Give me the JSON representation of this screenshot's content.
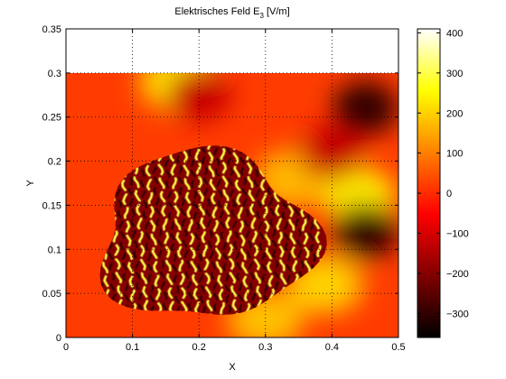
{
  "chart_data": {
    "type": "heatmap",
    "title": "Elektrisches Feld E",
    "title_subscript": "3",
    "title_unit": "[V/m]",
    "xlabel": "X",
    "ylabel": "Y",
    "xlim": [
      0,
      0.5
    ],
    "ylim": [
      0,
      0.35
    ],
    "data_extent": {
      "x": [
        0,
        0.5
      ],
      "y": [
        0,
        0.3
      ]
    },
    "x_ticks": [
      "0",
      "0.1",
      "0.2",
      "0.3",
      "0.4",
      "0.5"
    ],
    "x_tick_values": [
      0,
      0.1,
      0.2,
      0.3,
      0.4,
      0.5
    ],
    "y_ticks": [
      "0",
      "0.05",
      "0.1",
      "0.15",
      "0.2",
      "0.25",
      "0.3",
      "0.35"
    ],
    "y_tick_values": [
      0,
      0.05,
      0.1,
      0.15,
      0.2,
      0.25,
      0.3,
      0.35
    ],
    "grid": true,
    "grid_style": "dotted",
    "colormap": "hot",
    "colorbar": {
      "range": [
        -360,
        410
      ],
      "ticks": [
        "400",
        "300",
        "200",
        "100",
        "0",
        "−100",
        "−200",
        "−300"
      ],
      "tick_values": [
        400,
        300,
        200,
        100,
        0,
        -100,
        -200,
        -300
      ],
      "colors": [
        "#000000",
        "#800000",
        "#ff0000",
        "#ff8000",
        "#ffff00",
        "#ffffff"
      ]
    },
    "field_summary": {
      "background_level": 20,
      "interference_region": {
        "x": [
          0.05,
          0.37
        ],
        "y": [
          0.02,
          0.21
        ],
        "range": [
          -360,
          400
        ]
      },
      "hot_regions": [
        {
          "x": 0.17,
          "y": 0.29,
          "value": 230
        },
        {
          "x": 0.44,
          "y": 0.16,
          "value": 230
        },
        {
          "x": 0.39,
          "y": 0.06,
          "value": 200
        },
        {
          "x": 0.3,
          "y": 0.02,
          "value": 180
        },
        {
          "x": 0.34,
          "y": 0.18,
          "value": 170
        }
      ],
      "cold_regions": [
        {
          "x": 0.45,
          "y": 0.26,
          "value": -300
        },
        {
          "x": 0.45,
          "y": 0.12,
          "value": -300
        },
        {
          "x": 0.2,
          "y": 0.275,
          "value": -120
        },
        {
          "x": 0.4,
          "y": 0.21,
          "value": -120
        }
      ]
    }
  }
}
